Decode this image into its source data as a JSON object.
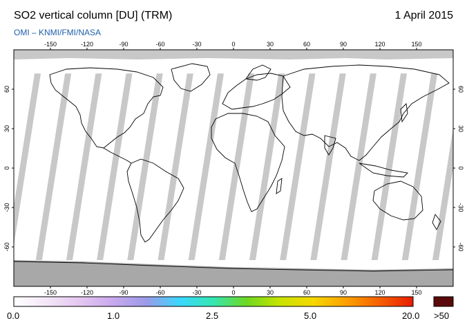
{
  "header": {
    "title": "SO2 vertical column [DU] (TRM)",
    "date": "1 April 2015",
    "credit": "OMI  –  KNMI/FMI/NASA"
  },
  "map": {
    "lon_ticks_top": [
      "-150",
      "-120",
      "-90",
      "-60",
      "-30",
      "0",
      "30",
      "60",
      "90",
      "120",
      "150"
    ],
    "lon_ticks_bottom": [
      "-150",
      "-120",
      "-90",
      "-60",
      "-30",
      "0",
      "30",
      "60",
      "90",
      "120",
      "150"
    ],
    "lat_ticks_left": [
      "60",
      "30",
      "0",
      "-30",
      "-60"
    ],
    "lat_ticks_right": [
      "60",
      "30",
      "0",
      "-30",
      "-60"
    ],
    "colors": {
      "ocean": "#ffffff",
      "no_data_gap": "#c8c8c8",
      "polar_cap": "#a8a8a8",
      "land_in_gap": "#9a9a9a",
      "coastline": "#000000"
    }
  },
  "colorbar": {
    "labels": [
      "0.0",
      "1.0",
      "2.5",
      "5.0",
      "20.0"
    ],
    "overflow_label": ">50",
    "overflow_color": "#5a0a0a",
    "gradient": [
      "#ffffff",
      "#f3e6f7",
      "#e4c6f0",
      "#c8a8ee",
      "#9a9ae8",
      "#3ad8ff",
      "#34e6b0",
      "#6ed820",
      "#c8e400",
      "#f5d800",
      "#fca000",
      "#f66000",
      "#e81c00"
    ]
  }
}
